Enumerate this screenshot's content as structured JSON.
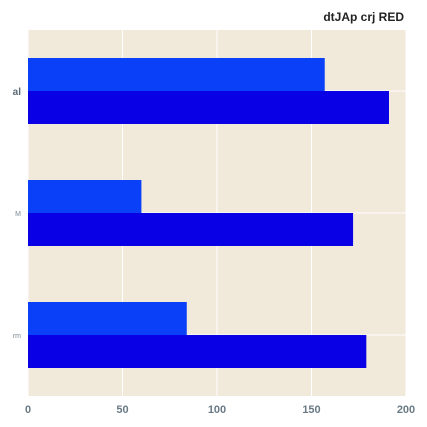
{
  "chart_data": {
    "type": "bar",
    "orientation": "horizontal",
    "title": "dtJAp crj RED",
    "xlabel": "",
    "ylabel": "",
    "categories": [
      "al",
      "M",
      "rm"
    ],
    "series": [
      {
        "color": "#0a40f8",
        "values": [
          157,
          60,
          84
        ]
      },
      {
        "color": "#0a00e6",
        "values": [
          191,
          172,
          179
        ]
      }
    ],
    "xlim": [
      0,
      200
    ],
    "xticks": [
      0,
      50,
      100,
      150,
      200
    ],
    "grid": true,
    "legend": "none",
    "colors": {
      "background": "#f1eadb",
      "grid": "#ffffff"
    }
  }
}
